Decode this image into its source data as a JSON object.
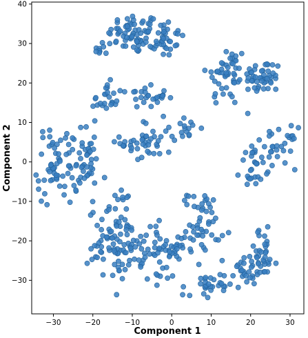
{
  "chart_data": {
    "type": "scatter",
    "title": "",
    "xlabel": "Component 1",
    "ylabel": "Component 2",
    "xlim": [
      -35.5,
      33.5
    ],
    "ylim": [
      -38.5,
      40.5
    ],
    "xticks": [
      -30,
      -20,
      -10,
      0,
      10,
      20,
      30
    ],
    "yticks": [
      -30,
      -20,
      -10,
      0,
      10,
      20,
      30,
      40
    ],
    "xtick_labels": [
      "−30",
      "−20",
      "−10",
      "0",
      "10",
      "20",
      "30"
    ],
    "ytick_labels": [
      "−30",
      "−20",
      "−10",
      "0",
      "10",
      "20",
      "30",
      "40"
    ],
    "grid": false,
    "legend": false,
    "marker_color": "#3a7fc1",
    "marker_edge": "#1f5f99",
    "clusters": [
      {
        "cx": -9.5,
        "cy": 32.5,
        "sx": 3.2,
        "sy": 2.6,
        "n": 58
      },
      {
        "cx": -3.0,
        "cy": 31.5,
        "sx": 3.2,
        "sy": 2.5,
        "n": 42
      },
      {
        "cx": 14.0,
        "cy": 22.0,
        "sx": 2.6,
        "sy": 4.0,
        "n": 48
      },
      {
        "cx": 23.0,
        "cy": 21.5,
        "sx": 2.4,
        "sy": 2.2,
        "n": 48
      },
      {
        "cx": -17.5,
        "cy": 28.5,
        "sx": 1.1,
        "sy": 1.2,
        "n": 10
      },
      {
        "cx": -17.0,
        "cy": 15.5,
        "sx": 1.6,
        "sy": 2.2,
        "n": 22
      },
      {
        "cx": -7.0,
        "cy": 16.5,
        "sx": 2.8,
        "sy": 1.3,
        "n": 28
      },
      {
        "cx": -6.5,
        "cy": 5.0,
        "sx": 3.2,
        "sy": 2.8,
        "n": 42
      },
      {
        "cx": 2.5,
        "cy": 8.5,
        "sx": 2.4,
        "sy": 1.3,
        "n": 16
      },
      {
        "cx": -28.5,
        "cy": -1.0,
        "sx": 2.8,
        "sy": 5.0,
        "n": 65
      },
      {
        "cx": -21.5,
        "cy": 0.0,
        "sx": 1.6,
        "sy": 3.5,
        "n": 35
      },
      {
        "cx": 26.5,
        "cy": 3.5,
        "sx": 2.6,
        "sy": 2.6,
        "n": 35
      },
      {
        "cx": 21.0,
        "cy": -1.5,
        "sx": 1.8,
        "sy": 2.6,
        "n": 22
      },
      {
        "cx": -14.0,
        "cy": -21.0,
        "sx": 3.6,
        "sy": 4.6,
        "n": 82
      },
      {
        "cx": -6.0,
        "cy": -22.0,
        "sx": 2.8,
        "sy": 2.8,
        "n": 34
      },
      {
        "cx": 1.5,
        "cy": -21.5,
        "sx": 2.2,
        "sy": 1.6,
        "n": 25
      },
      {
        "cx": 8.0,
        "cy": -17.5,
        "sx": 2.2,
        "sy": 2.2,
        "n": 28
      },
      {
        "cx": 8.0,
        "cy": -10.5,
        "sx": 2.0,
        "sy": 1.2,
        "n": 18
      },
      {
        "cx": 9.0,
        "cy": -32.0,
        "sx": 3.2,
        "sy": 2.0,
        "n": 32
      },
      {
        "cx": 19.5,
        "cy": -27.5,
        "sx": 2.8,
        "sy": 2.2,
        "n": 28
      },
      {
        "cx": 23.0,
        "cy": -23.0,
        "sx": 1.8,
        "sy": 3.0,
        "n": 30
      },
      {
        "cx": -13.0,
        "cy": -9.0,
        "sx": 1.4,
        "sy": 1.6,
        "n": 9
      },
      {
        "cx": -2.0,
        "cy": -29.0,
        "sx": 1.8,
        "sy": 1.4,
        "n": 8
      }
    ]
  }
}
